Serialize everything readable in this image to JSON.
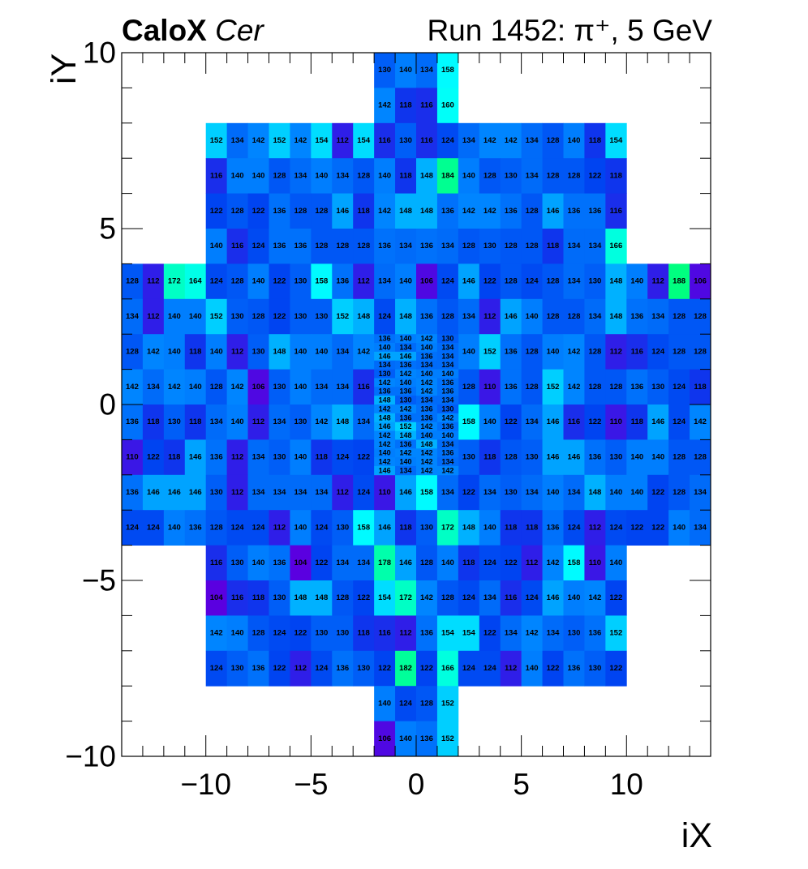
{
  "header": {
    "detector": "CaloX",
    "channel": "Cer",
    "run_info": "Run 1452: π⁺, 5 GeV"
  },
  "colors": {
    "palette_low": "#5a00e0",
    "palette_mid": "#0040f0",
    "palette_cyan": "#00ffff",
    "palette_high": "#00ff80"
  },
  "chart_data": {
    "type": "heatmap",
    "title": "",
    "xlabel": "iX",
    "ylabel": "iY",
    "xlim": [
      -14,
      14
    ],
    "ylim": [
      -10,
      10
    ],
    "x_ticks": [
      -10,
      -5,
      0,
      5,
      10
    ],
    "y_ticks": [
      -10,
      -5,
      0,
      5,
      10
    ],
    "x_tick_labels": [
      "−10",
      "−5",
      "0",
      "5",
      "10"
    ],
    "y_tick_labels": [
      "−10",
      "−5",
      "0",
      "5",
      "10"
    ],
    "color_range": [
      104,
      188
    ],
    "coarse_cells": [
      {
        "y": 9,
        "x0": -2,
        "values": [
          130,
          140,
          134,
          158
        ]
      },
      {
        "y": 8,
        "x0": -2,
        "values": [
          142,
          118,
          116,
          160
        ]
      },
      {
        "y": 7,
        "x0": -10,
        "values": [
          152,
          134,
          142,
          152,
          142,
          154,
          112,
          154,
          116,
          130,
          116,
          124,
          134,
          142,
          142,
          134,
          128,
          140,
          118,
          154
        ]
      },
      {
        "y": 6,
        "x0": -10,
        "values": [
          116,
          140,
          140,
          128,
          134,
          140,
          134,
          128,
          140,
          118,
          148,
          184,
          140,
          128,
          130,
          134,
          128,
          128,
          122,
          118
        ]
      },
      {
        "y": 5,
        "x0": -10,
        "values": [
          122,
          128,
          122,
          136,
          128,
          128,
          146,
          118,
          142,
          148,
          148,
          136,
          142,
          142,
          136,
          128,
          146,
          136,
          136,
          116
        ]
      },
      {
        "y": 4,
        "x0": -10,
        "values": [
          140,
          116,
          124,
          136,
          136,
          128,
          128,
          128,
          136,
          134,
          136,
          134,
          128,
          130,
          128,
          128,
          118,
          134,
          134,
          166
        ]
      },
      {
        "y": 3,
        "x0": -14,
        "values": [
          128,
          112,
          172,
          164,
          124,
          128,
          140,
          122,
          130,
          158,
          136,
          112,
          134,
          140,
          106,
          124,
          146,
          122,
          128,
          124,
          128,
          134,
          130,
          148,
          140,
          112,
          188,
          106
        ]
      },
      {
        "y": 2,
        "x0": -14,
        "values": [
          134,
          112,
          140,
          140,
          152,
          130,
          128,
          122,
          130,
          130,
          152,
          148,
          124,
          148,
          136,
          128,
          134,
          112,
          146,
          140,
          128,
          128,
          134,
          148,
          136,
          134,
          128,
          128
        ]
      },
      {
        "y": 1,
        "x0": -14,
        "values": [
          128,
          142,
          140,
          118,
          140,
          112,
          130,
          148,
          140,
          140,
          134,
          142,
          null,
          null,
          null,
          null,
          140,
          152,
          136,
          128,
          140,
          142,
          128,
          112,
          116,
          124,
          128,
          128
        ]
      },
      {
        "y": 0,
        "x0": -14,
        "values": [
          142,
          134,
          142,
          140,
          128,
          142,
          106,
          130,
          140,
          134,
          134,
          116,
          null,
          null,
          null,
          null,
          128,
          110,
          136,
          128,
          152,
          142,
          128,
          128,
          136,
          130,
          124,
          118
        ]
      },
      {
        "y": -1,
        "x0": -14,
        "values": [
          136,
          118,
          130,
          118,
          134,
          140,
          112,
          134,
          130,
          142,
          148,
          134,
          null,
          null,
          null,
          null,
          158,
          140,
          122,
          134,
          146,
          116,
          122,
          110,
          118,
          146,
          124,
          142
        ]
      },
      {
        "y": -2,
        "x0": -14,
        "values": [
          110,
          122,
          118,
          146,
          136,
          112,
          134,
          130,
          140,
          118,
          124,
          122,
          null,
          null,
          null,
          null,
          130,
          118,
          128,
          130,
          146,
          146,
          136,
          130,
          140,
          140,
          128,
          128
        ]
      },
      {
        "y": -3,
        "x0": -14,
        "values": [
          136,
          146,
          146,
          146,
          130,
          112,
          134,
          134,
          134,
          134,
          112,
          124,
          110,
          146,
          158,
          134,
          122,
          134,
          130,
          134,
          140,
          134,
          148,
          140,
          140,
          122,
          128,
          134
        ]
      },
      {
        "y": -4,
        "x0": -14,
        "values": [
          124,
          124,
          140,
          136,
          128,
          124,
          124,
          112,
          140,
          124,
          130,
          158,
          146,
          118,
          130,
          172,
          148,
          140,
          118,
          118,
          136,
          124,
          112,
          124,
          122,
          122,
          140,
          134
        ]
      },
      {
        "y": -5,
        "x0": -10,
        "values": [
          116,
          130,
          140,
          136,
          104,
          122,
          134,
          134,
          178,
          146,
          128,
          140,
          118,
          124,
          122,
          112,
          142,
          158,
          110,
          140
        ]
      },
      {
        "y": -6,
        "x0": -10,
        "values": [
          104,
          116,
          118,
          130,
          148,
          148,
          128,
          122,
          154,
          172,
          142,
          128,
          124,
          134,
          116,
          124,
          146,
          140,
          142,
          122
        ]
      },
      {
        "y": -7,
        "x0": -10,
        "values": [
          142,
          140,
          128,
          124,
          122,
          130,
          130,
          118,
          116,
          112,
          136,
          154,
          154,
          122,
          134,
          142,
          134,
          130,
          136,
          152
        ]
      },
      {
        "y": -8,
        "x0": -10,
        "values": [
          124,
          130,
          136,
          122,
          112,
          124,
          136,
          130,
          122,
          182,
          122,
          166,
          124,
          124,
          112,
          140,
          122,
          136,
          130,
          122
        ]
      },
      {
        "y": -9,
        "x0": -2,
        "values": [
          140,
          124,
          128,
          152
        ]
      },
      {
        "y": -10,
        "x0": -2,
        "values": [
          106,
          140,
          136,
          152
        ]
      }
    ],
    "fine_cells": {
      "x0": -2,
      "x_step": 1,
      "y_top": 2,
      "y_step": 0.25,
      "rows": [
        [
          136,
          140,
          142,
          130
        ],
        [
          140,
          134,
          140,
          134
        ],
        [
          146,
          146,
          136,
          134
        ],
        [
          134,
          136,
          134,
          134
        ],
        [
          130,
          142,
          140,
          140
        ],
        [
          142,
          140,
          142,
          136
        ],
        [
          136,
          136,
          142,
          136
        ],
        [
          148,
          130,
          134,
          134
        ],
        [
          142,
          142,
          136,
          130
        ],
        [
          148,
          136,
          136,
          142
        ],
        [
          146,
          152,
          142,
          136
        ],
        [
          142,
          148,
          140,
          140
        ],
        [
          142,
          136,
          148,
          134
        ],
        [
          140,
          142,
          142,
          136
        ],
        [
          142,
          140,
          142,
          134
        ],
        [
          146,
          134,
          142,
          142
        ]
      ]
    }
  }
}
